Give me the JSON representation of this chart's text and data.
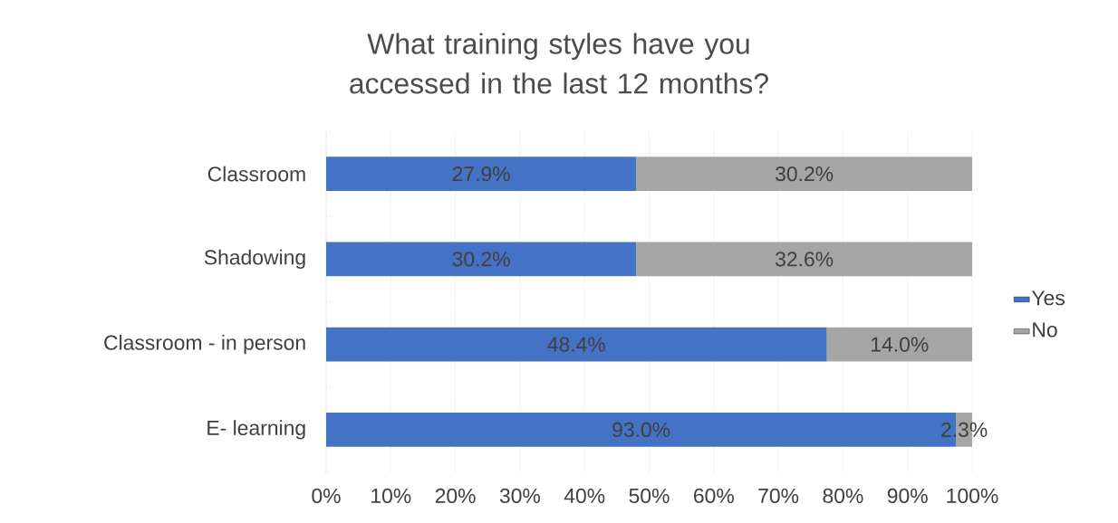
{
  "chart_data": {
    "type": "bar",
    "orientation": "horizontal",
    "stacked": true,
    "title": "What training styles have you accessed in the last 12 months?",
    "categories": [
      "Classroom",
      "Shadowing",
      "Classroom - in person",
      "E- learning"
    ],
    "series": [
      {
        "name": "Yes",
        "color": "#4472c4",
        "values": [
          48,
          48,
          77.5,
          97.5
        ]
      },
      {
        "name": "No",
        "color": "#a5a5a5",
        "values": [
          52,
          52,
          22.5,
          2.5
        ]
      }
    ],
    "annotations": [
      "27.9%",
      "30.2%",
      "30.2%",
      "32.6%",
      "48.4%",
      "14.0%",
      "93.0%",
      "2.3%"
    ],
    "xlim": [
      0,
      100
    ],
    "xticks": [
      {
        "value": 0,
        "label": "0%"
      },
      {
        "value": 10,
        "label": "10%"
      },
      {
        "value": 20,
        "label": "20%"
      },
      {
        "value": 30,
        "label": "30%"
      },
      {
        "value": 40,
        "label": "40%"
      },
      {
        "value": 50,
        "label": "50%"
      },
      {
        "value": 60,
        "label": "60%"
      },
      {
        "value": 70,
        "label": "70%"
      },
      {
        "value": 80,
        "label": "80%"
      },
      {
        "value": 90,
        "label": "90%"
      },
      {
        "value": 100,
        "label": "100%"
      }
    ],
    "grid": "x",
    "legend": "right"
  }
}
